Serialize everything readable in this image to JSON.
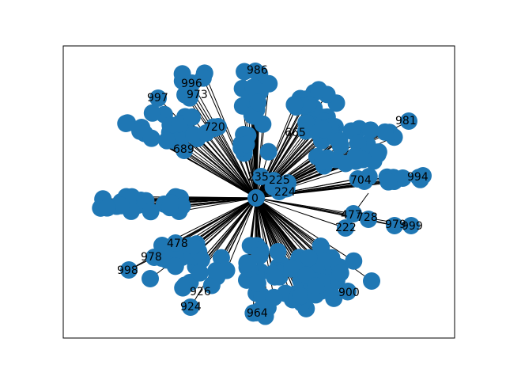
{
  "graph": {
    "node_color": "#1f77b4",
    "edge_color": "#000000",
    "hub_label": "0",
    "visible_labels": [
      "0",
      "996",
      "997",
      "973",
      "720",
      "665",
      "689",
      "981",
      "704",
      "994",
      "477",
      "728",
      "979",
      "999",
      "478",
      "998",
      "978",
      "926",
      "924",
      "964",
      "900",
      "224",
      "235",
      "225",
      "222",
      "986"
    ]
  }
}
